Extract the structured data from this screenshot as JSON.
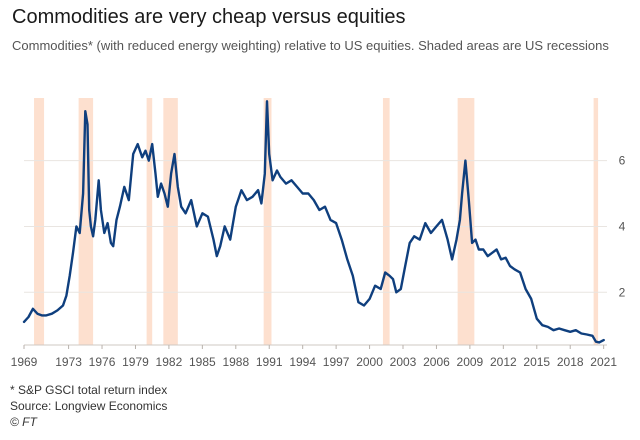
{
  "title": "Commodities are very cheap versus equities",
  "subtitle": "Commodities* (with reduced energy weighting) relative to US equities. Shaded areas are US recessions",
  "footnote": "* S&P GSCI total return index",
  "source": "Source: Longview Economics",
  "credit": "© FT",
  "colors": {
    "line": "#0f3f7e",
    "recession": "#fde0cf",
    "grid": "#e9e5e1",
    "text": "#555555"
  },
  "chart_data": {
    "type": "line",
    "xlabel": "",
    "ylabel": "",
    "xlim": [
      1969,
      2021.3
    ],
    "ylim": [
      0.4,
      7.9
    ],
    "x_ticks": [
      1969,
      1973,
      1976,
      1979,
      1982,
      1985,
      1988,
      1991,
      1994,
      1997,
      2000,
      2003,
      2006,
      2009,
      2012,
      2015,
      2018,
      2021
    ],
    "x_tick_labels": [
      "1969",
      "1973",
      "1976",
      "1979",
      "1982",
      "1985",
      "1988",
      "1991",
      "1994",
      "1997",
      "2000",
      "2003",
      "2006",
      "2009",
      "2012",
      "2015",
      "2018",
      "2021"
    ],
    "y_ticks": [
      2,
      4,
      6
    ],
    "y_tick_labels": [
      "2",
      "4",
      "6"
    ],
    "grid": true,
    "recessions": [
      [
        1969.9,
        1970.8
      ],
      [
        1973.9,
        1975.2
      ],
      [
        1980.0,
        1980.5
      ],
      [
        1981.5,
        1982.8
      ],
      [
        1990.5,
        1991.2
      ],
      [
        2001.2,
        2001.8
      ],
      [
        2007.9,
        2009.4
      ],
      [
        2020.1,
        2020.5
      ]
    ],
    "series": [
      {
        "x": [
          1969.0,
          1969.4,
          1969.8,
          1970.2,
          1970.6,
          1971.0,
          1971.5,
          1972.0,
          1972.5,
          1972.8,
          1973.1,
          1973.4,
          1973.7,
          1974.0,
          1974.3,
          1974.5,
          1974.7,
          1974.85,
          1975.0,
          1975.2,
          1975.4,
          1975.7,
          1975.9,
          1976.2,
          1976.5,
          1976.8,
          1977.0,
          1977.3,
          1977.6,
          1978.0,
          1978.4,
          1978.8,
          1979.2,
          1979.6,
          1979.9,
          1980.2,
          1980.5,
          1980.8,
          1981.0,
          1981.3,
          1981.6,
          1981.9,
          1982.2,
          1982.5,
          1982.8,
          1983.1,
          1983.5,
          1984.0,
          1984.5,
          1985.0,
          1985.5,
          1986.0,
          1986.3,
          1986.6,
          1987.0,
          1987.5,
          1988.0,
          1988.5,
          1989.0,
          1989.5,
          1990.0,
          1990.3,
          1990.6,
          1990.8,
          1991.0,
          1991.3,
          1991.7,
          1992.0,
          1992.5,
          1993.0,
          1993.5,
          1994.0,
          1994.5,
          1995.0,
          1995.5,
          1996.0,
          1996.5,
          1997.0,
          1997.5,
          1998.0,
          1998.5,
          1999.0,
          1999.5,
          2000.0,
          2000.5,
          2001.0,
          2001.4,
          2001.8,
          2002.1,
          2002.4,
          2002.8,
          2003.2,
          2003.6,
          2004.0,
          2004.5,
          2005.0,
          2005.5,
          2006.0,
          2006.5,
          2007.0,
          2007.4,
          2007.8,
          2008.1,
          2008.3,
          2008.6,
          2008.9,
          2009.2,
          2009.5,
          2009.8,
          2010.2,
          2010.6,
          2011.0,
          2011.4,
          2011.8,
          2012.2,
          2012.6,
          2013.0,
          2013.5,
          2014.0,
          2014.5,
          2015.0,
          2015.5,
          2016.0,
          2016.5,
          2017.0,
          2017.5,
          2018.0,
          2018.5,
          2019.0,
          2019.5,
          2020.0,
          2020.3,
          2020.6,
          2021.0
        ],
        "values": [
          1.1,
          1.25,
          1.5,
          1.35,
          1.3,
          1.3,
          1.35,
          1.45,
          1.6,
          1.9,
          2.5,
          3.2,
          4.0,
          3.8,
          5.0,
          7.5,
          7.1,
          4.5,
          4.0,
          3.7,
          4.2,
          5.4,
          4.5,
          3.8,
          4.1,
          3.5,
          3.4,
          4.2,
          4.6,
          5.2,
          4.8,
          6.2,
          6.5,
          6.1,
          6.3,
          6.0,
          6.5,
          5.6,
          4.9,
          5.3,
          5.0,
          4.6,
          5.6,
          6.2,
          5.2,
          4.6,
          4.4,
          4.8,
          4.0,
          4.4,
          4.3,
          3.6,
          3.1,
          3.4,
          4.0,
          3.6,
          4.6,
          5.1,
          4.8,
          4.9,
          5.1,
          4.7,
          5.6,
          7.8,
          6.2,
          5.4,
          5.7,
          5.5,
          5.3,
          5.4,
          5.2,
          5.0,
          5.0,
          4.8,
          4.5,
          4.6,
          4.2,
          4.1,
          3.6,
          3.0,
          2.5,
          1.7,
          1.6,
          1.8,
          2.2,
          2.1,
          2.6,
          2.5,
          2.4,
          2.0,
          2.1,
          2.8,
          3.5,
          3.7,
          3.6,
          4.1,
          3.8,
          4.0,
          4.2,
          3.6,
          3.0,
          3.6,
          4.2,
          5.0,
          6.0,
          4.8,
          3.5,
          3.6,
          3.3,
          3.3,
          3.1,
          3.2,
          3.3,
          3.0,
          3.05,
          2.8,
          2.7,
          2.6,
          2.1,
          1.8,
          1.2,
          1.0,
          0.95,
          0.85,
          0.9,
          0.85,
          0.8,
          0.85,
          0.75,
          0.72,
          0.68,
          0.5,
          0.48,
          0.55
        ]
      }
    ]
  }
}
